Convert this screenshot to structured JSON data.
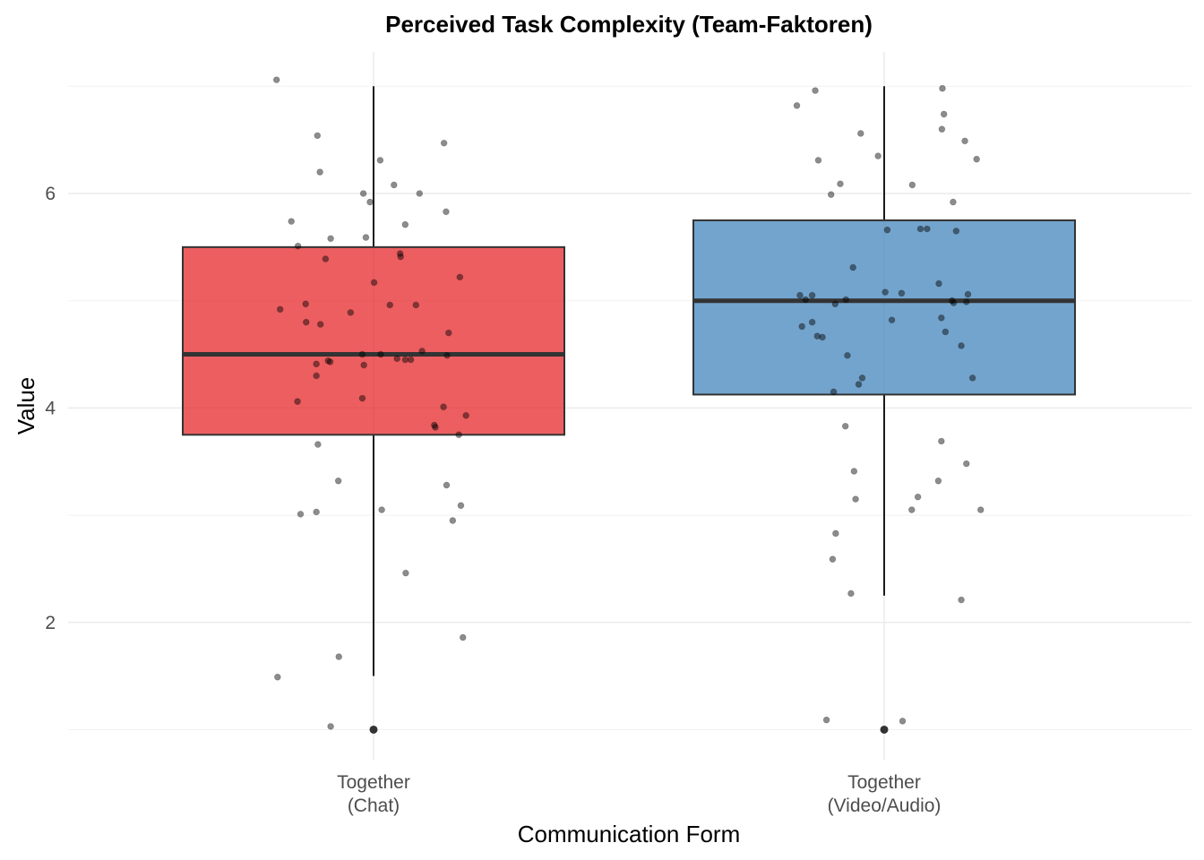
{
  "chart_data": {
    "type": "boxplot",
    "title": "Perceived Task Complexity (Team-Faktoren)",
    "xlabel": "Communication Form",
    "ylabel": "Value",
    "ylim": [
      0.72,
      7.32
    ],
    "yticks": [
      2,
      4,
      6
    ],
    "grid": true,
    "legend": "none",
    "categories": [
      {
        "label_lines": [
          "Together",
          "(Chat)"
        ],
        "color": "#e41a1c",
        "box": {
          "q1": 3.75,
          "median": 4.5,
          "q3": 5.5,
          "whisker_low": 1.5,
          "whisker_high": 7.0
        },
        "outliers": [
          1.0
        ]
      },
      {
        "label_lines": [
          "Together",
          "(Video/Audio)"
        ],
        "color": "#377eb8",
        "box": {
          "q1": 4.125,
          "median": 5.0,
          "q3": 5.75,
          "whisker_low": 2.25,
          "whisker_high": 7.0
        },
        "outliers": [
          1.0
        ]
      }
    ],
    "jitter_points": [
      [
        {
          "dx": -0.19,
          "y": 7.06
        },
        {
          "dx": -0.11,
          "y": 6.54
        },
        {
          "dx": -0.105,
          "y": 6.2
        },
        {
          "dx": 0.013,
          "y": 6.31
        },
        {
          "dx": 0.138,
          "y": 6.47
        },
        {
          "dx": 0.04,
          "y": 6.08
        },
        {
          "dx": -0.02,
          "y": 6.0
        },
        {
          "dx": 0.09,
          "y": 6.0
        },
        {
          "dx": -0.007,
          "y": 5.92
        },
        {
          "dx": 0.142,
          "y": 5.83
        },
        {
          "dx": -0.161,
          "y": 5.74
        },
        {
          "dx": 0.062,
          "y": 5.71
        },
        {
          "dx": -0.084,
          "y": 5.58
        },
        {
          "dx": -0.015,
          "y": 5.59
        },
        {
          "dx": -0.148,
          "y": 5.51
        },
        {
          "dx": 0.052,
          "y": 5.44
        },
        {
          "dx": 0.053,
          "y": 5.41
        },
        {
          "dx": -0.094,
          "y": 5.39
        },
        {
          "dx": 0.169,
          "y": 5.22
        },
        {
          "dx": 0.001,
          "y": 5.17
        },
        {
          "dx": -0.133,
          "y": 4.97
        },
        {
          "dx": 0.032,
          "y": 4.96
        },
        {
          "dx": 0.083,
          "y": 4.96
        },
        {
          "dx": -0.183,
          "y": 4.92
        },
        {
          "dx": -0.045,
          "y": 4.89
        },
        {
          "dx": -0.132,
          "y": 4.8
        },
        {
          "dx": -0.104,
          "y": 4.78
        },
        {
          "dx": 0.147,
          "y": 4.7
        },
        {
          "dx": 0.095,
          "y": 4.53
        },
        {
          "dx": -0.022,
          "y": 4.5
        },
        {
          "dx": 0.014,
          "y": 4.5
        },
        {
          "dx": 0.144,
          "y": 4.49
        },
        {
          "dx": 0.046,
          "y": 4.46
        },
        {
          "dx": 0.062,
          "y": 4.45
        },
        {
          "dx": 0.073,
          "y": 4.45
        },
        {
          "dx": -0.089,
          "y": 4.44
        },
        {
          "dx": -0.085,
          "y": 4.43
        },
        {
          "dx": -0.112,
          "y": 4.41
        },
        {
          "dx": -0.019,
          "y": 4.4
        },
        {
          "dx": -0.112,
          "y": 4.3
        },
        {
          "dx": -0.022,
          "y": 4.09
        },
        {
          "dx": -0.149,
          "y": 4.06
        },
        {
          "dx": 0.137,
          "y": 4.01
        },
        {
          "dx": 0.181,
          "y": 3.93
        },
        {
          "dx": 0.119,
          "y": 3.84
        },
        {
          "dx": 0.121,
          "y": 3.82
        },
        {
          "dx": 0.167,
          "y": 3.75
        },
        {
          "dx": -0.109,
          "y": 3.66
        },
        {
          "dx": -0.069,
          "y": 3.32
        },
        {
          "dx": 0.143,
          "y": 3.28
        },
        {
          "dx": 0.171,
          "y": 3.09
        },
        {
          "dx": 0.016,
          "y": 3.05
        },
        {
          "dx": -0.112,
          "y": 3.03
        },
        {
          "dx": -0.143,
          "y": 3.01
        },
        {
          "dx": 0.155,
          "y": 2.95
        },
        {
          "dx": 0.063,
          "y": 2.46
        },
        {
          "dx": 0.175,
          "y": 1.86
        },
        {
          "dx": -0.068,
          "y": 1.68
        },
        {
          "dx": -0.188,
          "y": 1.49
        },
        {
          "dx": -0.084,
          "y": 1.03
        }
      ],
      [
        {
          "dx": 0.114,
          "y": 6.98
        },
        {
          "dx": -0.135,
          "y": 6.96
        },
        {
          "dx": -0.171,
          "y": 6.82
        },
        {
          "dx": 0.117,
          "y": 6.74
        },
        {
          "dx": 0.113,
          "y": 6.6
        },
        {
          "dx": -0.046,
          "y": 6.56
        },
        {
          "dx": 0.158,
          "y": 6.49
        },
        {
          "dx": -0.012,
          "y": 6.35
        },
        {
          "dx": 0.181,
          "y": 6.32
        },
        {
          "dx": -0.129,
          "y": 6.31
        },
        {
          "dx": -0.086,
          "y": 6.09
        },
        {
          "dx": 0.055,
          "y": 6.08
        },
        {
          "dx": -0.104,
          "y": 5.99
        },
        {
          "dx": 0.135,
          "y": 5.92
        },
        {
          "dx": 0.006,
          "y": 5.66
        },
        {
          "dx": 0.071,
          "y": 5.67
        },
        {
          "dx": 0.084,
          "y": 5.67
        },
        {
          "dx": 0.141,
          "y": 5.65
        },
        {
          "dx": -0.061,
          "y": 5.31
        },
        {
          "dx": 0.107,
          "y": 5.16
        },
        {
          "dx": 0.002,
          "y": 5.08
        },
        {
          "dx": 0.034,
          "y": 5.07
        },
        {
          "dx": 0.164,
          "y": 5.06
        },
        {
          "dx": -0.165,
          "y": 5.05
        },
        {
          "dx": -0.141,
          "y": 5.05
        },
        {
          "dx": -0.154,
          "y": 5.01
        },
        {
          "dx": -0.075,
          "y": 5.01
        },
        {
          "dx": 0.133,
          "y": 5.0
        },
        {
          "dx": 0.136,
          "y": 4.98
        },
        {
          "dx": 0.161,
          "y": 4.99
        },
        {
          "dx": -0.096,
          "y": 4.97
        },
        {
          "dx": 0.112,
          "y": 4.84
        },
        {
          "dx": 0.015,
          "y": 4.82
        },
        {
          "dx": -0.141,
          "y": 4.8
        },
        {
          "dx": -0.161,
          "y": 4.76
        },
        {
          "dx": 0.12,
          "y": 4.71
        },
        {
          "dx": -0.131,
          "y": 4.67
        },
        {
          "dx": -0.121,
          "y": 4.66
        },
        {
          "dx": 0.151,
          "y": 4.58
        },
        {
          "dx": -0.072,
          "y": 4.49
        },
        {
          "dx": -0.043,
          "y": 4.28
        },
        {
          "dx": 0.173,
          "y": 4.28
        },
        {
          "dx": -0.05,
          "y": 4.22
        },
        {
          "dx": -0.099,
          "y": 4.15
        },
        {
          "dx": -0.076,
          "y": 3.83
        },
        {
          "dx": 0.112,
          "y": 3.69
        },
        {
          "dx": 0.161,
          "y": 3.48
        },
        {
          "dx": -0.059,
          "y": 3.41
        },
        {
          "dx": 0.106,
          "y": 3.32
        },
        {
          "dx": 0.066,
          "y": 3.17
        },
        {
          "dx": -0.056,
          "y": 3.15
        },
        {
          "dx": 0.054,
          "y": 3.05
        },
        {
          "dx": 0.189,
          "y": 3.05
        },
        {
          "dx": -0.095,
          "y": 2.83
        },
        {
          "dx": -0.101,
          "y": 2.59
        },
        {
          "dx": -0.065,
          "y": 2.27
        },
        {
          "dx": 0.151,
          "y": 2.21
        },
        {
          "dx": -0.113,
          "y": 1.09
        },
        {
          "dx": 0.036,
          "y": 1.08
        }
      ]
    ]
  }
}
